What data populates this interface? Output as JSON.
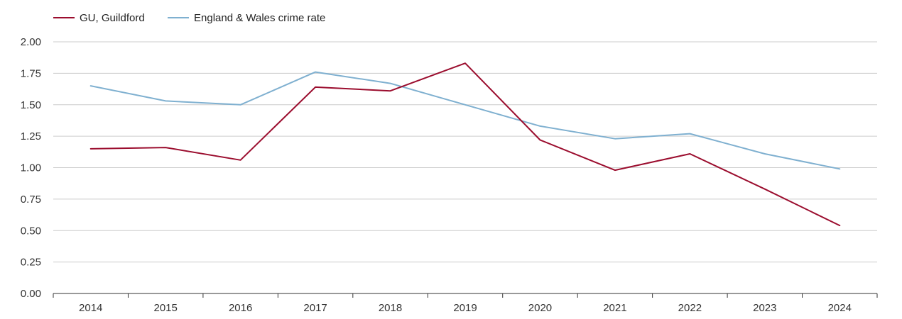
{
  "chart_data": {
    "type": "line",
    "title": "",
    "xlabel": "",
    "ylabel": "",
    "categories": [
      "2014",
      "2015",
      "2016",
      "2017",
      "2018",
      "2019",
      "2020",
      "2021",
      "2022",
      "2023",
      "2024"
    ],
    "y_ticks": [
      "0.00",
      "0.25",
      "0.50",
      "0.75",
      "1.00",
      "1.25",
      "1.50",
      "1.75",
      "2.00"
    ],
    "ylim": [
      0,
      2
    ],
    "grid": true,
    "legend_position": "top-left",
    "series": [
      {
        "name": "GU, Guildford",
        "color": "#9b0d2e",
        "values": [
          1.15,
          1.16,
          1.06,
          1.64,
          1.61,
          1.83,
          1.22,
          0.98,
          1.11,
          0.83,
          0.54
        ]
      },
      {
        "name": "England & Wales crime rate",
        "color": "#7fb0d0",
        "values": [
          1.65,
          1.53,
          1.5,
          1.76,
          1.67,
          1.5,
          1.33,
          1.23,
          1.27,
          1.11,
          0.99
        ]
      }
    ]
  }
}
